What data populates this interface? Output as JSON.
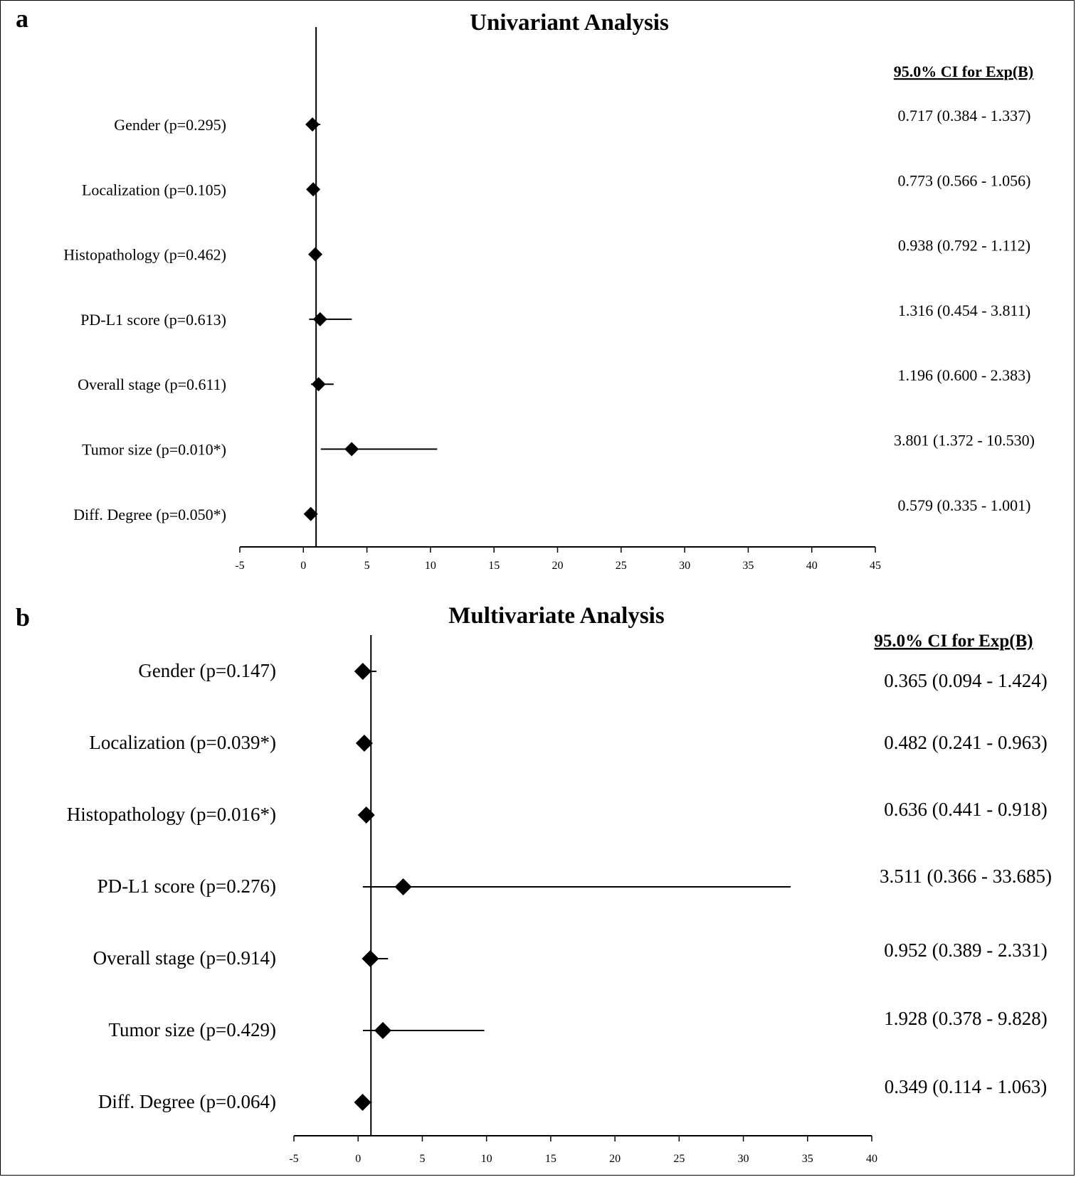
{
  "chart_data": [
    {
      "type": "forest",
      "panel": "a",
      "title": "Univariant Analysis",
      "ci_header": "95.0% CI for Exp(B)",
      "xlim": [
        -5,
        45
      ],
      "xticks": [
        -5,
        0,
        5,
        10,
        15,
        20,
        25,
        30,
        35,
        40,
        45
      ],
      "reference_line": 1,
      "rows": [
        {
          "label": "Gender (p=0.295)",
          "value": 0.717,
          "lower": 0.384,
          "upper": 1.337,
          "ci_text": "0.717 (0.384 - 1.337)"
        },
        {
          "label": "Localization (p=0.105)",
          "value": 0.773,
          "lower": 0.566,
          "upper": 1.056,
          "ci_text": "0.773 (0.566 - 1.056)"
        },
        {
          "label": "Histopathology (p=0.462)",
          "value": 0.938,
          "lower": 0.792,
          "upper": 1.112,
          "ci_text": "0.938 (0.792 - 1.112)"
        },
        {
          "label": "PD-L1 score (p=0.613)",
          "value": 1.316,
          "lower": 0.454,
          "upper": 3.811,
          "ci_text": "1.316 (0.454 - 3.811)"
        },
        {
          "label": "Overall stage (p=0.611)",
          "value": 1.196,
          "lower": 0.6,
          "upper": 2.383,
          "ci_text": "1.196 (0.600 - 2.383)"
        },
        {
          "label": "Tumor size (p=0.010*)",
          "value": 3.801,
          "lower": 1.372,
          "upper": 10.53,
          "ci_text": "3.801 (1.372 - 10.530)"
        },
        {
          "label": "Diff. Degree (p=0.050*)",
          "value": 0.579,
          "lower": 0.335,
          "upper": 1.001,
          "ci_text": "0.579 (0.335 - 1.001)"
        }
      ]
    },
    {
      "type": "forest",
      "panel": "b",
      "title": "Multivariate Analysis",
      "ci_header": "95.0% CI for Exp(B)",
      "xlim": [
        -5,
        40
      ],
      "xticks": [
        -5,
        0,
        5,
        10,
        15,
        20,
        25,
        30,
        35,
        40
      ],
      "reference_line": 1,
      "rows": [
        {
          "label": "Gender (p=0.147)",
          "value": 0.365,
          "lower": 0.094,
          "upper": 1.424,
          "ci_text": "0.365 (0.094 - 1.424)"
        },
        {
          "label": "Localization (p=0.039*)",
          "value": 0.482,
          "lower": 0.241,
          "upper": 0.963,
          "ci_text": "0.482 (0.241 - 0.963)"
        },
        {
          "label": "Histopathology (p=0.016*)",
          "value": 0.636,
          "lower": 0.441,
          "upper": 0.918,
          "ci_text": "0.636 (0.441 - 0.918)"
        },
        {
          "label": "PD-L1 score (p=0.276)",
          "value": 3.511,
          "lower": 0.366,
          "upper": 33.685,
          "ci_text": "3.511 (0.366 - 33.685)"
        },
        {
          "label": "Overall stage (p=0.914)",
          "value": 0.952,
          "lower": 0.389,
          "upper": 2.331,
          "ci_text": "0.952 (0.389 - 2.331)"
        },
        {
          "label": "Tumor size (p=0.429)",
          "value": 1.928,
          "lower": 0.378,
          "upper": 9.828,
          "ci_text": "1.928 (0.378 - 9.828)"
        },
        {
          "label": "Diff. Degree (p=0.064)",
          "value": 0.349,
          "lower": 0.114,
          "upper": 1.063,
          "ci_text": "0.349 (0.114 - 1.063)"
        }
      ]
    }
  ]
}
